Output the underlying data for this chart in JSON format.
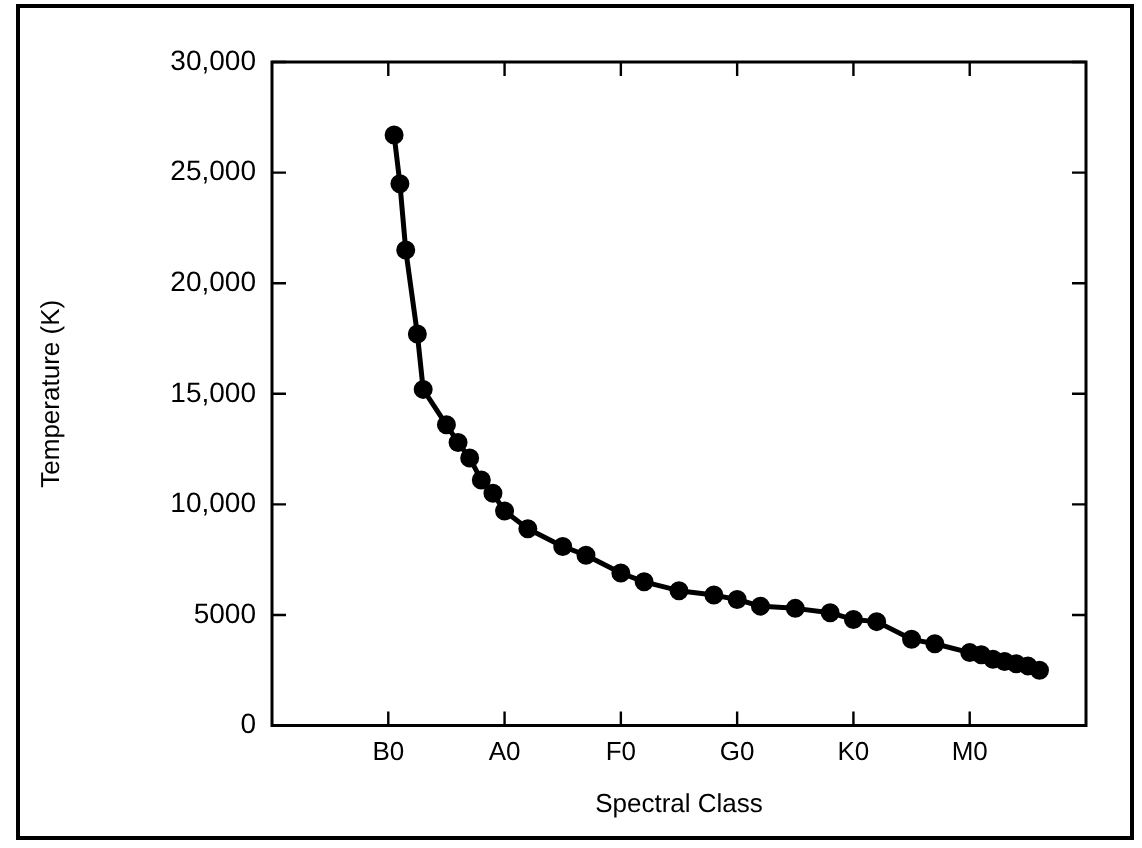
{
  "chart_data": {
    "type": "line",
    "xlabel": "Spectral Class",
    "ylabel": "Temperature (K)",
    "categories": [
      null,
      null,
      null,
      null,
      null,
      null,
      null,
      null,
      null,
      null,
      null,
      null,
      null,
      null,
      null,
      null,
      null,
      null,
      null,
      null,
      "B0",
      null,
      null,
      null,
      null,
      null,
      null,
      null,
      null,
      null,
      null,
      null,
      null,
      null,
      null,
      null,
      null,
      null,
      null,
      null,
      "A0",
      null,
      null,
      null,
      null,
      null,
      null,
      null,
      null,
      null,
      null,
      null,
      null,
      null,
      null,
      null,
      null,
      null,
      null,
      null,
      "F0",
      null,
      null,
      null,
      null,
      null,
      null,
      null,
      null,
      null,
      null,
      null,
      null,
      null,
      null,
      null,
      null,
      null,
      null,
      null,
      "G0",
      null,
      null,
      null,
      null,
      null,
      null,
      null,
      null,
      null,
      null,
      null,
      null,
      null,
      null,
      null,
      null,
      null,
      null,
      null,
      "K0",
      null,
      null,
      null,
      null,
      null,
      null,
      null,
      null,
      null,
      null,
      null,
      null,
      null,
      null,
      null,
      null,
      null,
      null,
      null,
      "M0",
      null,
      null,
      null,
      null,
      null,
      null,
      null,
      null,
      null,
      null,
      null,
      null,
      null,
      null,
      null,
      null,
      null,
      null,
      null,
      null
    ],
    "series": [
      {
        "color": "#000000",
        "values": [
          null,
          null,
          null,
          null,
          null,
          null,
          null,
          null,
          null,
          null,
          null,
          null,
          null,
          null,
          null,
          null,
          null,
          null,
          null,
          null,
          null,
          26700,
          24500,
          21500,
          null,
          17700,
          15200,
          null,
          null,
          null,
          13600,
          null,
          12800,
          null,
          12100,
          null,
          11100,
          null,
          10500,
          null,
          9700,
          null,
          null,
          null,
          8900,
          null,
          null,
          null,
          null,
          null,
          8100,
          null,
          null,
          null,
          7700,
          null,
          null,
          null,
          null,
          null,
          6900,
          null,
          null,
          null,
          6500,
          null,
          null,
          null,
          null,
          null,
          6100,
          null,
          null,
          null,
          null,
          null,
          5900,
          null,
          null,
          null,
          5700,
          null,
          null,
          null,
          5400,
          null,
          null,
          null,
          null,
          null,
          5300,
          null,
          null,
          null,
          null,
          null,
          5100,
          null,
          null,
          null,
          4800,
          null,
          null,
          null,
          4700,
          null,
          null,
          null,
          null,
          null,
          3900,
          null,
          null,
          null,
          3700,
          null,
          null,
          null,
          null,
          null,
          3300,
          null,
          3200,
          null,
          3000,
          null,
          2900,
          null,
          2800,
          null,
          2700,
          null,
          2500,
          null,
          null,
          null,
          null,
          null,
          null,
          null,
          null
        ]
      }
    ],
    "ylim": [
      0,
      30000
    ],
    "yticks": [
      {
        "value": 0,
        "label": "0"
      },
      {
        "value": 5000,
        "label": "5000"
      },
      {
        "value": 10000,
        "label": "10,000"
      },
      {
        "value": 15000,
        "label": "15,000"
      },
      {
        "value": 20000,
        "label": "20,000"
      },
      {
        "value": 25000,
        "label": "25,000"
      },
      {
        "value": 30000,
        "label": "30,000"
      }
    ],
    "grid": false,
    "legend": false,
    "marker": "circle",
    "line_style": "solid"
  }
}
